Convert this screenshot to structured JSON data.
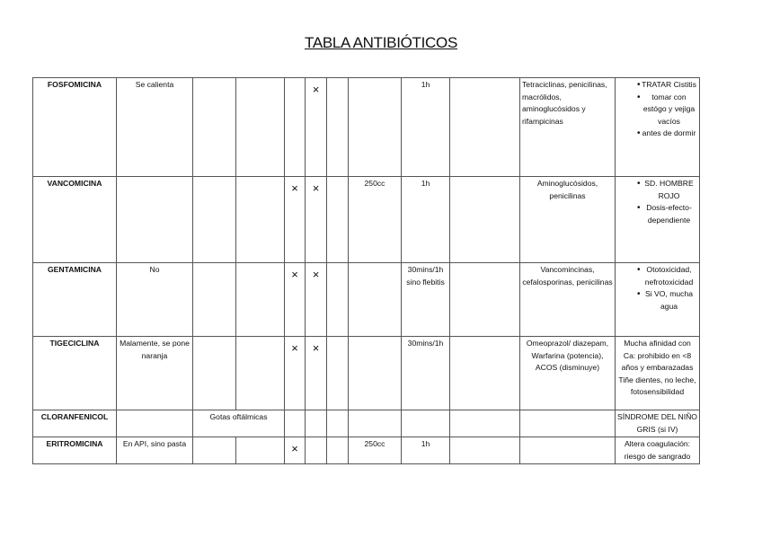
{
  "title": "TABLA ANTIBIÓTICOS",
  "mark_symbol": "×",
  "rows": [
    {
      "name": "FOSFOMICINA",
      "c1": "Se calienta",
      "c2": "",
      "c3": "",
      "x1": false,
      "x2": true,
      "c6": "",
      "volume": "",
      "time": "1h",
      "c9": "",
      "interactions": "Tetraciclinas, penicilinas, macrólidos, aminoglucósidos y rifampicinas",
      "interactions_align": "left",
      "notes": [
        "TRATAR Cistitis",
        "tomar con estógo y vejiga vacíos",
        "antes de dormir"
      ],
      "notes_list": true
    },
    {
      "name": "VANCOMICINA",
      "c1": "",
      "c2": "",
      "c3": "",
      "x1": true,
      "x2": true,
      "c6": "",
      "volume": "250cc",
      "time": "1h",
      "c9": "",
      "interactions": "Aminoglucósidos, penicilinas",
      "notes": [
        "SD. HOMBRE ROJO",
        "Dosis-efecto-dependiente"
      ],
      "notes_list": true
    },
    {
      "name": "GENTAMICINA",
      "c1": "No",
      "c2": "",
      "c3": "",
      "x1": true,
      "x2": true,
      "c6": "",
      "volume": "",
      "time": "30mins/1h sino flebitis",
      "c9": "",
      "interactions": "Vancomincinas, cefalosporinas, penicilinas",
      "notes": [
        "Ototoxicidad, nefrotoxicidad",
        "Si VO, mucha agua"
      ],
      "notes_list": true
    },
    {
      "name": "TIGECICLINA",
      "c1": "Malamente, se pone naranja",
      "c2": "",
      "c3": "",
      "x1": true,
      "x2": true,
      "c6": "",
      "volume": "",
      "time": "30mins/1h",
      "c9": "",
      "interactions": "Omeoprazol/ diazepam, Warfarina (potencia), ACOS (disminuye)",
      "notes": [
        "Mucha afinidad con Ca: prohibido en <8 años y embarazadas Tiñe dientes, no leche, fotosensibilidad"
      ],
      "notes_list": false
    },
    {
      "name": "CLORANFENICOL",
      "c1": "",
      "c2": "Gotas oftálmicas",
      "merge23": true,
      "x1": false,
      "x2": false,
      "c6": "",
      "volume": "",
      "time": "",
      "c9": "",
      "interactions": "",
      "notes": [
        "SÍNDROME DEL NIÑO GRIS (si IV)"
      ],
      "notes_list": false
    },
    {
      "name": "ERITROMICINA",
      "c1": "En API, sino pasta",
      "c2": "",
      "c3": "",
      "x1": true,
      "x2": false,
      "c6": "",
      "volume": "250cc",
      "time": "1h",
      "c9": "",
      "interactions": "",
      "notes": [
        "Altera coagulación: riesgo de sangrado"
      ],
      "notes_list": false
    }
  ]
}
